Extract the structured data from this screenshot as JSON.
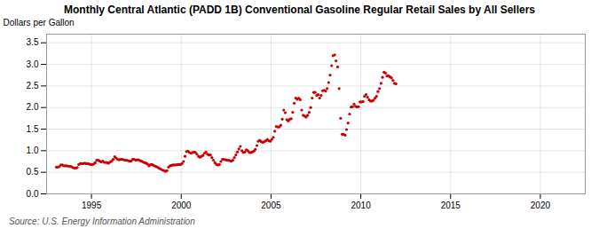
{
  "chart_data": {
    "type": "scatter",
    "title": "Monthly Central Atlantic (PADD 1B) Conventional Gasoline Regular Retail Sales by All Sellers",
    "ylabel": "Dollars per Gallon",
    "source": "Source: U.S. Energy Information Administration",
    "color": "#cc0000",
    "grid": true,
    "xlim": [
      1992.5,
      2022.5
    ],
    "ylim": [
      0.0,
      3.7
    ],
    "xticks": [
      1995,
      2000,
      2005,
      2010,
      2015,
      2020
    ],
    "yticks": [
      {
        "value": 0.0,
        "label": "0.0"
      },
      0.5,
      {
        "value": 1.0,
        "label": "1.0"
      },
      1.5,
      {
        "value": 2.0,
        "label": "2.0"
      },
      2.5,
      {
        "value": 3.0,
        "label": "3.0"
      },
      3.5
    ],
    "x": [
      1993.0416666666667,
      1993.125,
      1993.2083333333333,
      1993.2916666666667,
      1993.375,
      1993.4583333333333,
      1993.5416666666667,
      1993.625,
      1993.7083333333333,
      1993.7916666666667,
      1993.875,
      1993.9583333333333,
      1994.0416666666667,
      1994.125,
      1994.2083333333333,
      1994.2916666666667,
      1994.375,
      1994.4583333333333,
      1994.5416666666667,
      1994.625,
      1994.7083333333333,
      1994.7916666666667,
      1994.875,
      1994.9583333333333,
      1995.0416666666667,
      1995.125,
      1995.2083333333333,
      1995.2916666666667,
      1995.375,
      1995.4583333333333,
      1995.5416666666667,
      1995.625,
      1995.7083333333333,
      1995.7916666666667,
      1995.875,
      1995.9583333333333,
      1996.0416666666667,
      1996.125,
      1996.2083333333333,
      1996.2916666666667,
      1996.375,
      1996.4583333333333,
      1996.5416666666667,
      1996.625,
      1996.7083333333333,
      1996.7916666666667,
      1996.875,
      1996.9583333333333,
      1997.0416666666667,
      1997.125,
      1997.2083333333333,
      1997.2916666666667,
      1997.375,
      1997.4583333333333,
      1997.5416666666667,
      1997.625,
      1997.7083333333333,
      1997.7916666666667,
      1997.875,
      1997.9583333333333,
      1998.0416666666667,
      1998.125,
      1998.2083333333333,
      1998.2916666666667,
      1998.375,
      1998.4583333333333,
      1998.5416666666667,
      1998.625,
      1998.7083333333333,
      1998.7916666666667,
      1998.875,
      1998.9583333333333,
      1999.0416666666667,
      1999.125,
      1999.2083333333333,
      1999.2916666666667,
      1999.375,
      1999.4583333333333,
      1999.5416666666667,
      1999.625,
      1999.7083333333333,
      1999.7916666666667,
      1999.875,
      1999.9583333333333,
      2000.0416666666667,
      2000.125,
      2000.2083333333333,
      2000.2916666666667,
      2000.375,
      2000.4583333333333,
      2000.5416666666667,
      2000.625,
      2000.7083333333333,
      2000.7916666666667,
      2000.875,
      2000.9583333333333,
      2001.0416666666667,
      2001.125,
      2001.2083333333333,
      2001.2916666666667,
      2001.375,
      2001.4583333333333,
      2001.5416666666667,
      2001.625,
      2001.7083333333333,
      2001.7916666666667,
      2001.875,
      2001.9583333333333,
      2002.0416666666667,
      2002.125,
      2002.2083333333333,
      2002.2916666666667,
      2002.375,
      2002.4583333333333,
      2002.5416666666667,
      2002.625,
      2002.7083333333333,
      2002.7916666666667,
      2002.875,
      2002.9583333333333,
      2003.0416666666667,
      2003.125,
      2003.2083333333333,
      2003.2916666666667,
      2003.375,
      2003.4583333333333,
      2003.5416666666667,
      2003.625,
      2003.7083333333333,
      2003.7916666666667,
      2003.875,
      2003.9583333333333,
      2004.0416666666667,
      2004.125,
      2004.2083333333333,
      2004.2916666666667,
      2004.375,
      2004.4583333333333,
      2004.5416666666667,
      2004.625,
      2004.7083333333333,
      2004.7916666666667,
      2004.875,
      2004.9583333333333,
      2005.0416666666667,
      2005.125,
      2005.2083333333333,
      2005.2916666666667,
      2005.375,
      2005.4583333333333,
      2005.5416666666667,
      2005.625,
      2005.7083333333333,
      2005.7916666666667,
      2005.875,
      2005.9583333333333,
      2006.0416666666667,
      2006.125,
      2006.2083333333333,
      2006.2916666666667,
      2006.375,
      2006.4583333333333,
      2006.5416666666667,
      2006.625,
      2006.7083333333333,
      2006.7916666666667,
      2006.875,
      2006.9583333333333,
      2007.0416666666667,
      2007.125,
      2007.2083333333333,
      2007.2916666666667,
      2007.375,
      2007.4583333333333,
      2007.5416666666667,
      2007.625,
      2007.7083333333333,
      2007.7916666666667,
      2007.875,
      2007.9583333333333,
      2008.0416666666667,
      2008.125,
      2008.2083333333333,
      2008.2916666666667,
      2008.375,
      2008.4583333333333,
      2008.5416666666667,
      2008.625,
      2008.7083333333333,
      2008.7916666666667,
      2008.875,
      2008.9583333333333,
      2009.0416666666667,
      2009.125,
      2009.2083333333333,
      2009.2916666666667,
      2009.375,
      2009.4583333333333,
      2009.5416666666667,
      2009.625,
      2009.7083333333333,
      2009.7916666666667,
      2009.875,
      2009.9583333333333,
      2010.0416666666667,
      2010.125,
      2010.2083333333333,
      2010.2916666666667,
      2010.375,
      2010.4583333333333,
      2010.5416666666667,
      2010.625,
      2010.7083333333333,
      2010.7916666666667,
      2010.875,
      2010.9583333333333,
      2011.0416666666667,
      2011.125,
      2011.2083333333333,
      2011.2916666666667,
      2011.375,
      2011.4583333333333,
      2011.5416666666667,
      2011.625,
      2011.7083333333333,
      2011.7916666666667,
      2011.875,
      2011.9583333333333
    ],
    "values": [
      0.62,
      0.62,
      0.63,
      0.67,
      0.67,
      0.65,
      0.65,
      0.65,
      0.64,
      0.64,
      0.63,
      0.61,
      0.6,
      0.6,
      0.61,
      0.68,
      0.7,
      0.7,
      0.7,
      0.71,
      0.7,
      0.7,
      0.69,
      0.68,
      0.68,
      0.69,
      0.72,
      0.78,
      0.78,
      0.76,
      0.74,
      0.76,
      0.73,
      0.73,
      0.72,
      0.71,
      0.74,
      0.76,
      0.8,
      0.86,
      0.83,
      0.8,
      0.79,
      0.8,
      0.8,
      0.79,
      0.78,
      0.78,
      0.77,
      0.76,
      0.76,
      0.8,
      0.8,
      0.78,
      0.79,
      0.79,
      0.77,
      0.76,
      0.74,
      0.72,
      0.71,
      0.69,
      0.65,
      0.68,
      0.68,
      0.66,
      0.64,
      0.63,
      0.61,
      0.59,
      0.57,
      0.55,
      0.54,
      0.52,
      0.54,
      0.62,
      0.65,
      0.66,
      0.67,
      0.67,
      0.67,
      0.68,
      0.68,
      0.68,
      0.7,
      0.75,
      0.87,
      0.98,
      0.99,
      0.96,
      0.94,
      0.96,
      0.97,
      0.96,
      0.92,
      0.87,
      0.85,
      0.87,
      0.89,
      0.94,
      0.97,
      0.92,
      0.9,
      0.9,
      0.84,
      0.78,
      0.72,
      0.68,
      0.67,
      0.68,
      0.75,
      0.8,
      0.8,
      0.79,
      0.78,
      0.78,
      0.77,
      0.76,
      0.78,
      0.84,
      0.9,
      0.97,
      1.04,
      1.1,
      1.0,
      0.96,
      0.97,
      1.02,
      1.0,
      0.96,
      0.96,
      0.97,
      0.99,
      1.03,
      1.12,
      1.22,
      1.24,
      1.21,
      1.19,
      1.21,
      1.23,
      1.26,
      1.23,
      1.22,
      1.26,
      1.31,
      1.45,
      1.56,
      1.55,
      1.55,
      1.59,
      1.73,
      1.94,
      1.88,
      1.72,
      1.69,
      1.73,
      1.74,
      1.89,
      2.1,
      2.22,
      2.19,
      2.22,
      2.18,
      1.94,
      1.82,
      1.8,
      1.78,
      1.82,
      1.89,
      2.0,
      2.22,
      2.35,
      2.35,
      2.28,
      2.3,
      2.22,
      2.28,
      2.39,
      2.4,
      2.38,
      2.44,
      2.58,
      2.75,
      2.97,
      3.2,
      3.22,
      3.08,
      2.94,
      2.44,
      1.75,
      1.38,
      1.38,
      1.36,
      1.49,
      1.64,
      1.85,
      2.01,
      2.02,
      2.08,
      2.03,
      2.01,
      2.02,
      2.13,
      2.13,
      2.14,
      2.26,
      2.3,
      2.24,
      2.18,
      2.15,
      2.15,
      2.17,
      2.22,
      2.26,
      2.37,
      2.44,
      2.56,
      2.7,
      2.82,
      2.8,
      2.73,
      2.73,
      2.71,
      2.69,
      2.63,
      2.56,
      2.55
    ]
  }
}
